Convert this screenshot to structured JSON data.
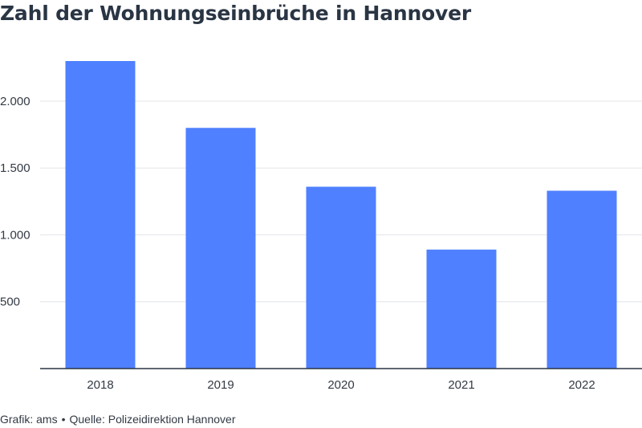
{
  "chart_data": {
    "type": "bar",
    "title": "Zahl der Wohnungseinbrüche in Hannover",
    "xlabel": "",
    "ylabel": "",
    "categories": [
      "2018",
      "2019",
      "2020",
      "2021",
      "2022"
    ],
    "values": [
      2300,
      1800,
      1360,
      890,
      1330
    ],
    "ylim": [
      0,
      2300
    ],
    "yticks": [
      500,
      1000,
      1500,
      2000
    ],
    "ytick_labels": [
      "500",
      "1.000",
      "1.500",
      "2.000"
    ],
    "grid": true,
    "bar_color": "#4f80ff"
  },
  "footer": {
    "credit": "Grafik: ams",
    "separator": "•",
    "source": "Quelle: Polizeidirektion Hannover"
  }
}
